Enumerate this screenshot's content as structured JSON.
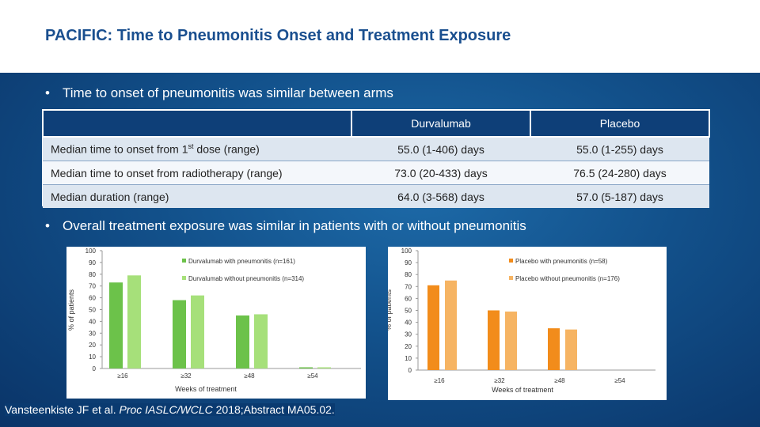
{
  "title": "PACIFIC: Time to Pneumonitis Onset and Treatment Exposure",
  "bullets": {
    "first": "Time to onset of pneumonitis was similar between arms",
    "second": "Overall treatment exposure was similar in patients with or without pneumonitis"
  },
  "table": {
    "headers": [
      "",
      "Durvalumab",
      "Placebo"
    ],
    "rows": [
      {
        "label_pre": "Median time to onset from 1",
        "label_sup": "st",
        "label_post": " dose (range)",
        "durvalumab": "55.0 (1-406) days",
        "placebo": "55.0 (1-255) days"
      },
      {
        "label": "Median time to onset from radiotherapy (range)",
        "durvalumab": "73.0 (20-433) days",
        "placebo": "76.5 (24-280) days"
      },
      {
        "label": "Median duration (range)",
        "durvalumab": "64.0 (3-568) days",
        "placebo": "57.0 (5-187) days"
      }
    ]
  },
  "colors": {
    "durva_with": "#6cc24a",
    "durva_without": "#a6e07a",
    "placebo_with": "#f28c1b",
    "placebo_without": "#f6b463",
    "header": "#0e3f78"
  },
  "chart_data": [
    {
      "type": "bar",
      "categories": [
        "≥16",
        "≥32",
        "≥48",
        "≥54"
      ],
      "series": [
        {
          "name": "Durvalumab with pneumonitis (n=161)",
          "values": [
            73,
            58,
            45,
            1
          ]
        },
        {
          "name": "Durvalumab without pneumonitis (n=314)",
          "values": [
            79,
            62,
            46,
            1
          ]
        }
      ],
      "xlabel": "Weeks of treatment",
      "ylabel": "% of patients",
      "yticks": [
        "0",
        "10",
        "20",
        "30",
        "40",
        "50",
        "60",
        "70",
        "80",
        "90",
        "100"
      ],
      "ylim": [
        0,
        100
      ]
    },
    {
      "type": "bar",
      "categories": [
        "≥16",
        "≥32",
        "≥48",
        "≥54"
      ],
      "series": [
        {
          "name": "Placebo with pneumonitis (n=58)",
          "values": [
            71,
            50,
            35,
            0
          ]
        },
        {
          "name": "Placebo without pneumonitis (n=176)",
          "values": [
            75,
            49,
            34,
            0
          ]
        }
      ],
      "xlabel": "Weeks of treatment",
      "ylabel": "% of patients",
      "yticks": [
        "0",
        "10",
        "20",
        "30",
        "40",
        "50",
        "60",
        "70",
        "80",
        "90",
        "100"
      ],
      "ylim": [
        0,
        100
      ]
    }
  ],
  "footnote": {
    "authors": "Vansteenkiste JF et al. ",
    "journal": "Proc IASLC/WCLC",
    "rest": " 2018;Abstract MA05.02."
  }
}
